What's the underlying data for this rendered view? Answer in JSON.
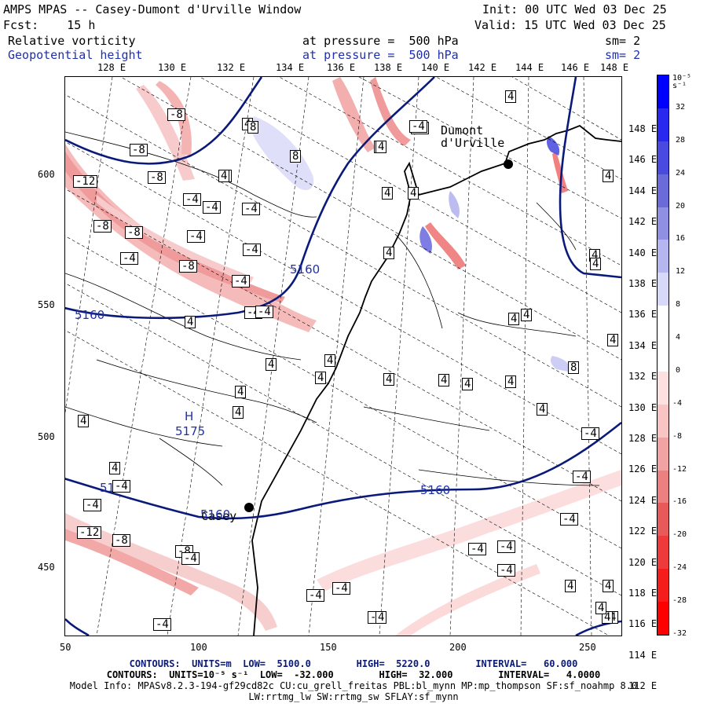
{
  "header": {
    "title": "AMPS MPAS -- Casey-Dumont d'Urville Window",
    "init": "Init: 00 UTC Wed 03 Dec 25",
    "fcst": "Fcst:    15 h",
    "valid": "Valid: 15 UTC Wed 03 Dec 25",
    "field1": "Relative vorticity",
    "field1_level": "at pressure =  500 hPa",
    "field1_sm": "sm= 2",
    "field2": "Geopotential height",
    "field2_level": "at pressure =  500 hPa",
    "field2_sm": "sm= 2"
  },
  "top_lon_labels": [
    "128 E",
    "130 E",
    "132 E",
    "134 E",
    "136 E",
    "138 E",
    "140 E",
    "142 E",
    "144 E",
    "146 E",
    "148 E"
  ],
  "right_lon_labels": [
    "148 E",
    "146 E",
    "144 E",
    "142 E",
    "140 E",
    "138 E",
    "136 E",
    "134 E",
    "132 E",
    "130 E",
    "128 E",
    "126 E",
    "124 E",
    "122 E",
    "120 E",
    "118 E",
    "116 E",
    "114 E",
    "112 E"
  ],
  "x_ticks": [
    "50",
    "100",
    "150",
    "200",
    "250"
  ],
  "y_ticks": [
    "600",
    "550",
    "500",
    "450"
  ],
  "colorbar": {
    "unit_label": "10⁻⁵ s⁻¹",
    "labels": [
      "32",
      "28",
      "24",
      "20",
      "16",
      "12",
      "8",
      "4",
      "0",
      "-4",
      "-8",
      "-12",
      "-16",
      "-20",
      "-24",
      "-28",
      "-32"
    ],
    "colors": [
      "#0000ff",
      "#2828ee",
      "#4a4ae0",
      "#6a6ad8",
      "#8f8fe4",
      "#b5b5f0",
      "#d8d8f8",
      "#ffffff",
      "#ffffff",
      "#fde0e0",
      "#f8c4c4",
      "#f2a2a2",
      "#ec8080",
      "#e85a5a",
      "#ee3a3a",
      "#f51c1c",
      "#ff0000"
    ]
  },
  "places": {
    "dumont": "Dumont\nd'Urville",
    "casey": "Casey"
  },
  "height_labels": [
    "5160",
    "5160",
    "5160",
    "5160",
    "5160"
  ],
  "high": {
    "symbol": "H",
    "value": "5175"
  },
  "vort_labels": [
    "-8",
    "-8",
    "-8",
    "-12",
    "-8",
    "-8",
    "-4",
    "-4",
    "-4",
    "-4",
    "-4",
    "-8",
    "-4",
    "-4",
    "-4",
    "4",
    "8",
    "8",
    "4",
    "4",
    "-4",
    "4",
    "4",
    "4",
    "4",
    "4",
    "4",
    "-4",
    "4",
    "4",
    "4",
    "4",
    "4",
    "4",
    "4",
    "4",
    "4",
    "4",
    "4",
    "4",
    "4",
    "-4",
    "4",
    "4",
    "4",
    "4",
    "8",
    "4",
    "4",
    "-4",
    "-4",
    "-4",
    "-4",
    "-4",
    "-4",
    "-4",
    "-4",
    "-4",
    "-4",
    "-12",
    "-8",
    "-8",
    "-4",
    "-4",
    "4",
    "4",
    "4",
    "-4",
    "4",
    "4",
    "4"
  ],
  "footer": {
    "line1": "CONTOURS:  UNITS=m  LOW=  5100.0        HIGH=  5220.0        INTERVAL=   60.000",
    "line2": "CONTOURS:  UNITS=10⁻⁵ s⁻¹  LOW=  -32.000        HIGH=  32.000        INTERVAL=   4.0000",
    "line3": "Model Info: MPASv8.2.3-194-gf29cd82c CU:cu_grell_freitas PBL:bl_mynn MP:mp_thompson SF:sf_noahmp 8.0",
    "line4": "LW:rrtmg_lw SW:rrtmg_sw SFLAY:sf_mynn"
  }
}
